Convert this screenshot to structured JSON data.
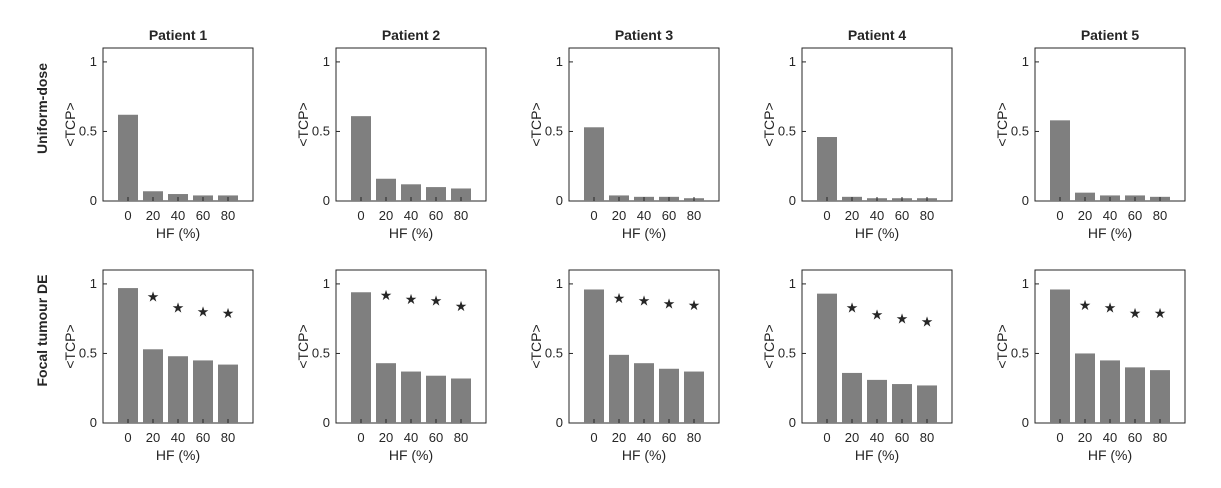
{
  "figure": {
    "row_labels": [
      "Uniform-dose",
      "Focal tumour DE"
    ],
    "panel_titles": [
      "Patient 1",
      "Patient 2",
      "Patient 3",
      "Patient 4",
      "Patient 5"
    ]
  },
  "chart_data": [
    {
      "type": "bar",
      "row": 0,
      "col": 0,
      "title": "Patient 1",
      "row_label": "Uniform-dose",
      "xlabel": "HF (%)",
      "ylabel": "<TCP>",
      "categories": [
        "0",
        "20",
        "40",
        "60",
        "80"
      ],
      "values": [
        0.62,
        0.07,
        0.05,
        0.04,
        0.04
      ],
      "stars": [],
      "ylim": [
        0,
        1.1
      ],
      "yticks": [
        0,
        0.5,
        1
      ],
      "ytick_labels": [
        "0",
        "0.5",
        "1"
      ],
      "bar_color": "#7f7f7f"
    },
    {
      "type": "bar",
      "row": 0,
      "col": 1,
      "title": "Patient 2",
      "row_label": "Uniform-dose",
      "xlabel": "HF (%)",
      "ylabel": "<TCP>",
      "categories": [
        "0",
        "20",
        "40",
        "60",
        "80"
      ],
      "values": [
        0.61,
        0.16,
        0.12,
        0.1,
        0.09
      ],
      "stars": [],
      "ylim": [
        0,
        1.1
      ],
      "yticks": [
        0,
        0.5,
        1
      ],
      "ytick_labels": [
        "0",
        "0.5",
        "1"
      ],
      "bar_color": "#7f7f7f"
    },
    {
      "type": "bar",
      "row": 0,
      "col": 2,
      "title": "Patient 3",
      "row_label": "Uniform-dose",
      "xlabel": "HF (%)",
      "ylabel": "<TCP>",
      "categories": [
        "0",
        "20",
        "40",
        "60",
        "80"
      ],
      "values": [
        0.53,
        0.04,
        0.03,
        0.03,
        0.02
      ],
      "stars": [],
      "ylim": [
        0,
        1.1
      ],
      "yticks": [
        0,
        0.5,
        1
      ],
      "ytick_labels": [
        "0",
        "0.5",
        "1"
      ],
      "bar_color": "#7f7f7f"
    },
    {
      "type": "bar",
      "row": 0,
      "col": 3,
      "title": "Patient 4",
      "row_label": "Uniform-dose",
      "xlabel": "HF (%)",
      "ylabel": "<TCP>",
      "categories": [
        "0",
        "20",
        "40",
        "60",
        "80"
      ],
      "values": [
        0.46,
        0.03,
        0.02,
        0.02,
        0.02
      ],
      "stars": [],
      "ylim": [
        0,
        1.1
      ],
      "yticks": [
        0,
        0.5,
        1
      ],
      "ytick_labels": [
        "0",
        "0.5",
        "1"
      ],
      "bar_color": "#7f7f7f"
    },
    {
      "type": "bar",
      "row": 0,
      "col": 4,
      "title": "Patient 5",
      "row_label": "Uniform-dose",
      "xlabel": "HF (%)",
      "ylabel": "<TCP>",
      "categories": [
        "0",
        "20",
        "40",
        "60",
        "80"
      ],
      "values": [
        0.58,
        0.06,
        0.04,
        0.04,
        0.03
      ],
      "stars": [],
      "ylim": [
        0,
        1.1
      ],
      "yticks": [
        0,
        0.5,
        1
      ],
      "ytick_labels": [
        "0",
        "0.5",
        "1"
      ],
      "bar_color": "#7f7f7f"
    },
    {
      "type": "bar",
      "row": 1,
      "col": 0,
      "title": "",
      "row_label": "Focal tumour DE",
      "xlabel": "HF (%)",
      "ylabel": "<TCP>",
      "categories": [
        "0",
        "20",
        "40",
        "60",
        "80"
      ],
      "values": [
        0.97,
        0.53,
        0.48,
        0.45,
        0.42
      ],
      "stars": [
        null,
        0.91,
        0.83,
        0.8,
        0.79
      ],
      "ylim": [
        0,
        1.1
      ],
      "yticks": [
        0,
        0.5,
        1
      ],
      "ytick_labels": [
        "0",
        "0.5",
        "1"
      ],
      "bar_color": "#7f7f7f"
    },
    {
      "type": "bar",
      "row": 1,
      "col": 1,
      "title": "",
      "row_label": "Focal tumour DE",
      "xlabel": "HF (%)",
      "ylabel": "<TCP>",
      "categories": [
        "0",
        "20",
        "40",
        "60",
        "80"
      ],
      "values": [
        0.94,
        0.43,
        0.37,
        0.34,
        0.32
      ],
      "stars": [
        null,
        0.92,
        0.89,
        0.88,
        0.84
      ],
      "ylim": [
        0,
        1.1
      ],
      "yticks": [
        0,
        0.5,
        1
      ],
      "ytick_labels": [
        "0",
        "0.5",
        "1"
      ],
      "bar_color": "#7f7f7f"
    },
    {
      "type": "bar",
      "row": 1,
      "col": 2,
      "title": "",
      "row_label": "Focal tumour DE",
      "xlabel": "HF (%)",
      "ylabel": "<TCP>",
      "categories": [
        "0",
        "20",
        "40",
        "60",
        "80"
      ],
      "values": [
        0.96,
        0.49,
        0.43,
        0.39,
        0.37
      ],
      "stars": [
        null,
        0.9,
        0.88,
        0.86,
        0.85
      ],
      "ylim": [
        0,
        1.1
      ],
      "yticks": [
        0,
        0.5,
        1
      ],
      "ytick_labels": [
        "0",
        "0.5",
        "1"
      ],
      "bar_color": "#7f7f7f"
    },
    {
      "type": "bar",
      "row": 1,
      "col": 3,
      "title": "",
      "row_label": "Focal tumour DE",
      "xlabel": "HF (%)",
      "ylabel": "<TCP>",
      "categories": [
        "0",
        "20",
        "40",
        "60",
        "80"
      ],
      "values": [
        0.93,
        0.36,
        0.31,
        0.28,
        0.27
      ],
      "stars": [
        null,
        0.83,
        0.78,
        0.75,
        0.73
      ],
      "ylim": [
        0,
        1.1
      ],
      "yticks": [
        0,
        0.5,
        1
      ],
      "ytick_labels": [
        "0",
        "0.5",
        "1"
      ],
      "bar_color": "#7f7f7f"
    },
    {
      "type": "bar",
      "row": 1,
      "col": 4,
      "title": "",
      "row_label": "Focal tumour DE",
      "xlabel": "HF (%)",
      "ylabel": "<TCP>",
      "categories": [
        "0",
        "20",
        "40",
        "60",
        "80"
      ],
      "values": [
        0.96,
        0.5,
        0.45,
        0.4,
        0.38
      ],
      "stars": [
        null,
        0.85,
        0.83,
        0.79,
        0.79
      ],
      "ylim": [
        0,
        1.1
      ],
      "yticks": [
        0,
        0.5,
        1
      ],
      "ytick_labels": [
        "0",
        "0.5",
        "1"
      ],
      "bar_color": "#7f7f7f"
    }
  ]
}
